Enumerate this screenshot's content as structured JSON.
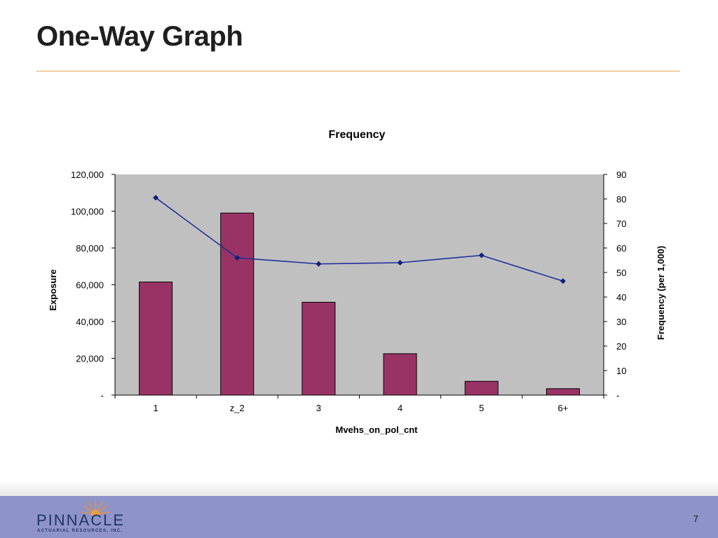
{
  "slide": {
    "title": "One-Way Graph",
    "page_number": "7"
  },
  "logo": {
    "name": "PINNACLE",
    "tagline": "ACTUARIAL RESOURCES, INC."
  },
  "colors": {
    "bar": "#993366",
    "line": "#1f2d9a",
    "plot_bg": "#c0c0c0",
    "accent_rule": "#e8a24a",
    "footer": "#8e93c8"
  },
  "chart_data": {
    "type": "bar",
    "title": "Frequency",
    "xlabel": "Mvehs_on_pol_cnt",
    "ylabel": "Exposure",
    "y2label": "Frequency (per 1,000)",
    "categories": [
      "1",
      "z_2",
      "3",
      "4",
      "5",
      "6+"
    ],
    "ylim": [
      0,
      120000
    ],
    "y2lim": [
      0,
      90
    ],
    "y_ticks": [
      "-",
      "20,000",
      "40,000",
      "60,000",
      "80,000",
      "100,000",
      "120,000"
    ],
    "y2_ticks": [
      "-",
      "10",
      "20",
      "30",
      "40",
      "50",
      "60",
      "70",
      "80",
      "90"
    ],
    "grid": false,
    "legend": "none",
    "series": [
      {
        "type": "bar",
        "axis": "left",
        "values": [
          61500,
          99000,
          50500,
          22500,
          7500,
          3500
        ]
      },
      {
        "type": "line",
        "axis": "right",
        "marker": "diamond",
        "values": [
          80.5,
          56,
          53.5,
          54,
          57,
          46.5
        ]
      }
    ]
  }
}
